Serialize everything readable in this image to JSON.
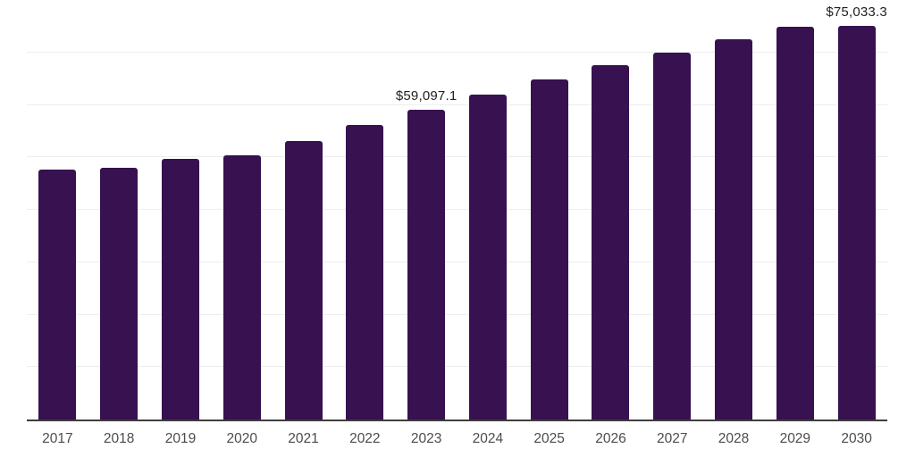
{
  "chart_data": {
    "type": "bar",
    "title": "",
    "xlabel": "",
    "ylabel": "",
    "categories": [
      "2017",
      "2018",
      "2019",
      "2020",
      "2021",
      "2022",
      "2023",
      "2024",
      "2025",
      "2026",
      "2027",
      "2028",
      "2029",
      "2030"
    ],
    "values": [
      47600,
      47950,
      49650,
      50320,
      53090,
      56140,
      59097.1,
      62020,
      64900,
      67615,
      70040,
      72530,
      74900,
      75033.3
    ],
    "data_labels": [
      {
        "category": "2023",
        "text": "$59,097.1"
      },
      {
        "category": "2030",
        "text": "$75,033.3"
      }
    ],
    "ylim": [
      0,
      80000
    ],
    "gridline_step": 10000,
    "grid": "horizontal-only",
    "y_axis_tick_labels": "none",
    "legend": "none",
    "colors": {
      "bar_fill": "#371150",
      "axis_line": "#3e3e3e",
      "gridline": "#ededed",
      "tick_label": "#4c4c4c",
      "data_label": "#1f1f1f",
      "background": "#ffffff"
    }
  }
}
